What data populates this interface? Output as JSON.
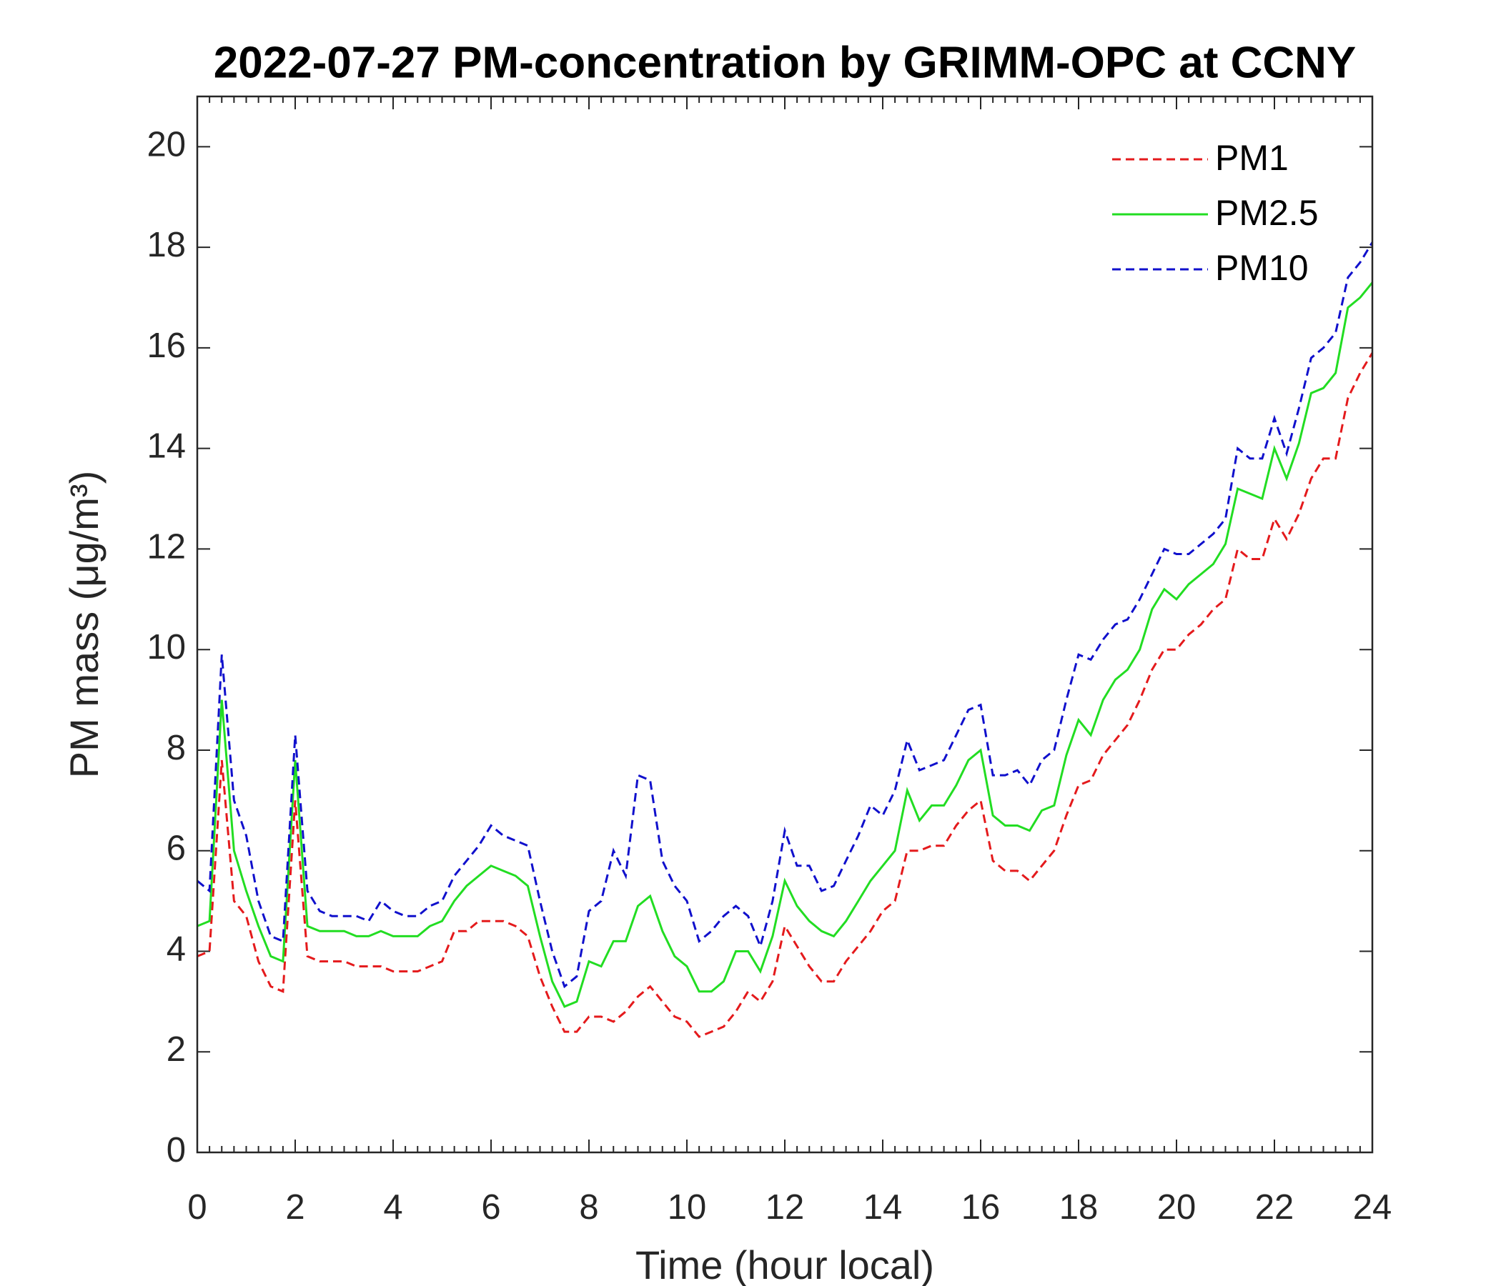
{
  "chart_data": {
    "type": "line",
    "title": "2022-07-27 PM-concentration by GRIMM-OPC at CCNY",
    "x_label": "Time (hour local)",
    "y_label": "PM mass (μg/m³)",
    "x": [
      0,
      0.25,
      0.5,
      0.75,
      1,
      1.25,
      1.5,
      1.75,
      2,
      2.25,
      2.5,
      2.75,
      3,
      3.25,
      3.5,
      3.75,
      4,
      4.25,
      4.5,
      4.75,
      5,
      5.25,
      5.5,
      5.75,
      6,
      6.25,
      6.5,
      6.75,
      7,
      7.25,
      7.5,
      7.75,
      8,
      8.25,
      8.5,
      8.75,
      9,
      9.25,
      9.5,
      9.75,
      10,
      10.25,
      10.5,
      10.75,
      11,
      11.25,
      11.5,
      11.75,
      12,
      12.25,
      12.5,
      12.75,
      13,
      13.25,
      13.5,
      13.75,
      14,
      14.25,
      14.5,
      14.75,
      15,
      15.25,
      15.5,
      15.75,
      16,
      16.25,
      16.5,
      16.75,
      17,
      17.25,
      17.5,
      17.75,
      18,
      18.25,
      18.5,
      18.75,
      19,
      19.25,
      19.5,
      19.75,
      20,
      20.25,
      20.5,
      20.75,
      21,
      21.25,
      21.5,
      21.75,
      22,
      22.25,
      22.5,
      22.75,
      23,
      23.25,
      23.5,
      23.75,
      24
    ],
    "series": [
      {
        "name": "PM1",
        "color": "#e41a1c",
        "line_style": "dashed",
        "values": [
          3.9,
          4.0,
          7.8,
          5.0,
          4.7,
          3.8,
          3.3,
          3.2,
          7.0,
          3.9,
          3.8,
          3.8,
          3.8,
          3.7,
          3.7,
          3.7,
          3.6,
          3.6,
          3.6,
          3.7,
          3.8,
          4.4,
          4.4,
          4.6,
          4.6,
          4.6,
          4.5,
          4.3,
          3.5,
          2.9,
          2.4,
          2.4,
          2.7,
          2.7,
          2.6,
          2.8,
          3.1,
          3.3,
          3.0,
          2.7,
          2.6,
          2.3,
          2.4,
          2.5,
          2.8,
          3.2,
          3.0,
          3.4,
          4.5,
          4.1,
          3.7,
          3.4,
          3.4,
          3.8,
          4.1,
          4.4,
          4.8,
          5.0,
          6.0,
          6.0,
          6.1,
          6.1,
          6.5,
          6.8,
          7.0,
          5.8,
          5.6,
          5.6,
          5.4,
          5.7,
          6.0,
          6.7,
          7.3,
          7.4,
          7.9,
          8.2,
          8.5,
          9.0,
          9.6,
          10.0,
          10.0,
          10.3,
          10.5,
          10.8,
          11.0,
          12.0,
          11.8,
          11.8,
          12.6,
          12.2,
          12.7,
          13.4,
          13.8,
          13.8,
          15.0,
          15.5,
          15.9
        ]
      },
      {
        "name": "PM2.5",
        "color": "#22dd22",
        "line_style": "solid",
        "values": [
          4.5,
          4.6,
          9.0,
          6.0,
          5.2,
          4.5,
          3.9,
          3.8,
          7.8,
          4.5,
          4.4,
          4.4,
          4.4,
          4.3,
          4.3,
          4.4,
          4.3,
          4.3,
          4.3,
          4.5,
          4.6,
          5.0,
          5.3,
          5.5,
          5.7,
          5.6,
          5.5,
          5.3,
          4.3,
          3.4,
          2.9,
          3.0,
          3.8,
          3.7,
          4.2,
          4.2,
          4.9,
          5.1,
          4.4,
          3.9,
          3.7,
          3.2,
          3.2,
          3.4,
          4.0,
          4.0,
          3.6,
          4.3,
          5.4,
          4.9,
          4.6,
          4.4,
          4.3,
          4.6,
          5.0,
          5.4,
          5.7,
          6.0,
          7.2,
          6.6,
          6.9,
          6.9,
          7.3,
          7.8,
          8.0,
          6.7,
          6.5,
          6.5,
          6.4,
          6.8,
          6.9,
          7.9,
          8.6,
          8.3,
          9.0,
          9.4,
          9.6,
          10.0,
          10.8,
          11.2,
          11.0,
          11.3,
          11.5,
          11.7,
          12.1,
          13.2,
          13.1,
          13.0,
          14.0,
          13.4,
          14.1,
          15.1,
          15.2,
          15.5,
          16.8,
          17.0,
          17.3
        ]
      },
      {
        "name": "PM10",
        "color": "#1010cc",
        "line_style": "dashed",
        "values": [
          5.4,
          5.2,
          9.9,
          7.0,
          6.3,
          5.0,
          4.3,
          4.2,
          8.3,
          5.2,
          4.8,
          4.7,
          4.7,
          4.7,
          4.6,
          5.0,
          4.8,
          4.7,
          4.7,
          4.9,
          5.0,
          5.5,
          5.8,
          6.1,
          6.5,
          6.3,
          6.2,
          6.1,
          5.0,
          4.0,
          3.3,
          3.5,
          4.8,
          5.0,
          6.0,
          5.5,
          7.5,
          7.4,
          5.8,
          5.3,
          5.0,
          4.2,
          4.4,
          4.7,
          4.9,
          4.7,
          4.1,
          5.0,
          6.4,
          5.7,
          5.7,
          5.2,
          5.3,
          5.8,
          6.3,
          6.9,
          6.7,
          7.2,
          8.2,
          7.6,
          7.7,
          7.8,
          8.3,
          8.8,
          8.9,
          7.5,
          7.5,
          7.6,
          7.3,
          7.8,
          8.0,
          9.0,
          9.9,
          9.8,
          10.2,
          10.5,
          10.6,
          11.0,
          11.5,
          12.0,
          11.9,
          11.9,
          12.1,
          12.3,
          12.6,
          14.0,
          13.8,
          13.8,
          14.6,
          13.9,
          14.8,
          15.8,
          16.0,
          16.3,
          17.4,
          17.7,
          18.1
        ]
      }
    ],
    "xlim": [
      0,
      24
    ],
    "xticks": [
      0,
      2,
      4,
      6,
      8,
      10,
      12,
      14,
      16,
      18,
      20,
      22,
      24
    ],
    "ylim": [
      0,
      21
    ],
    "yticks": [
      0,
      2,
      4,
      6,
      8,
      10,
      12,
      14,
      16,
      18,
      20
    ],
    "grid": false,
    "legend": "upper right"
  }
}
